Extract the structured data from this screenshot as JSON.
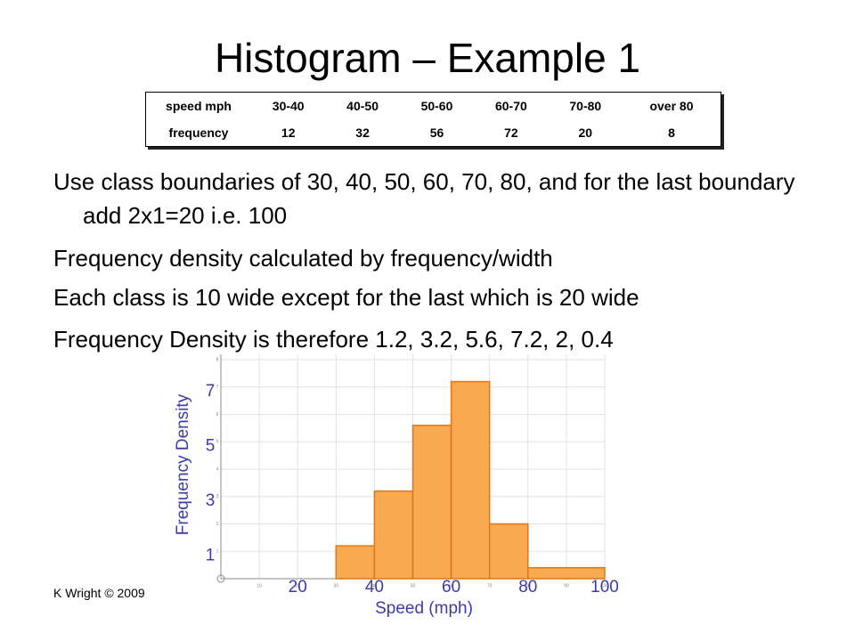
{
  "title": "Histogram – Example 1",
  "table": {
    "rows": [
      [
        "speed mph",
        "30-40",
        "40-50",
        "50-60",
        "60-70",
        "70-80",
        "over 80"
      ],
      [
        "frequency",
        12,
        32,
        56,
        72,
        20,
        8
      ]
    ]
  },
  "bullets": [
    "Use class boundaries of 30, 40, 50, 60, 70, 80, and for the last boundary add 2x1=20 i.e. 100",
    "Frequency density calculated by frequency/width",
    "Each class is 10 wide except for the last which is 20 wide",
    "Frequency Density is therefore 1.2, 3.2, 5.6, 7.2, 2, 0.4"
  ],
  "footer": "K Wright © 2009",
  "chart_data": {
    "type": "histogram",
    "bins": [
      30,
      40,
      50,
      60,
      70,
      80,
      100
    ],
    "values": [
      1.2,
      3.2,
      5.6,
      7.2,
      2,
      0.4
    ],
    "color": "#f9a94f",
    "xlabel": "Speed (mph)",
    "ylabel": "Frequency Density",
    "xlim": [
      0,
      100
    ],
    "ylim": [
      0,
      8
    ],
    "xticks": [
      20,
      40,
      60,
      80,
      100
    ],
    "yticks": [
      1,
      3,
      5,
      7
    ],
    "minor_xticks": [
      10,
      20,
      30,
      40,
      50,
      60,
      70,
      80,
      90,
      100
    ],
    "minor_yticks": [
      1,
      2,
      3,
      4,
      5,
      6,
      7,
      8
    ],
    "grid": true
  }
}
